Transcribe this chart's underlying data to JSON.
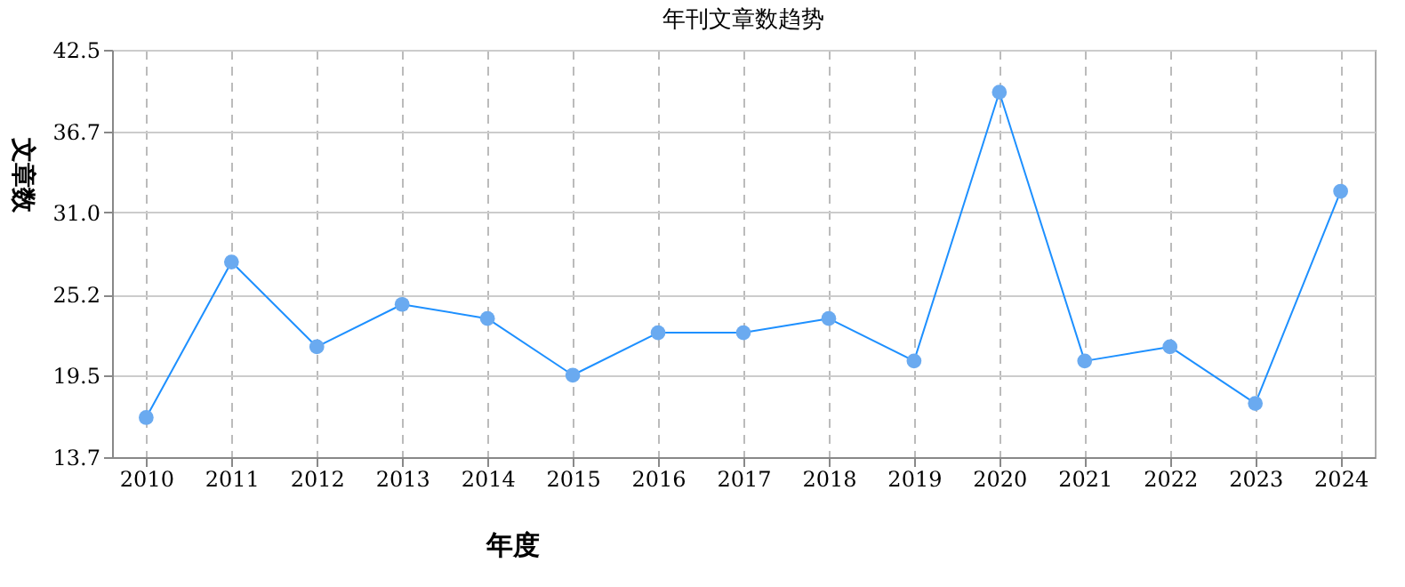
{
  "chart_data": {
    "type": "line",
    "title": "年刊文章数趋势",
    "xlabel": "年度",
    "ylabel": "文章数",
    "categories": [
      "2010",
      "2011",
      "2012",
      "2013",
      "2014",
      "2015",
      "2016",
      "2017",
      "2018",
      "2019",
      "2020",
      "2021",
      "2022",
      "2023",
      "2024"
    ],
    "series": [
      {
        "color": "#1e90ff",
        "values": [
          16.5,
          27.5,
          21.5,
          24.5,
          23.5,
          19.5,
          22.5,
          22.5,
          23.5,
          20.5,
          39.5,
          20.5,
          21.5,
          17.5,
          32.5
        ]
      }
    ],
    "ylim": [
      13.7,
      42.5
    ],
    "yticks": [
      13.7,
      19.5,
      25.2,
      {
        "value": 31,
        "label": "31.0"
      },
      36.7,
      42.5
    ],
    "grid": true,
    "marker": "circle"
  }
}
